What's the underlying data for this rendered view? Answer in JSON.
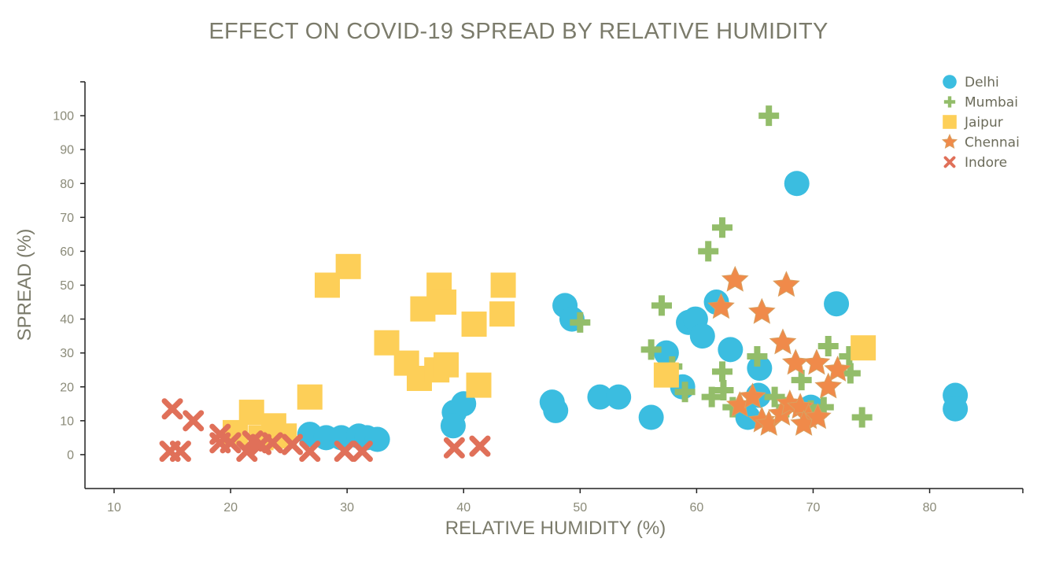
{
  "chart_data": {
    "type": "scatter",
    "title": "EFFECT ON COVID-19 SPREAD BY RELATIVE HUMIDITY",
    "xlabel": "RELATIVE HUMIDITY (%)",
    "ylabel": "SPREAD (%)",
    "xlim": [
      7.5,
      88
    ],
    "ylim": [
      -10,
      110
    ],
    "xticks": [
      10,
      20,
      30,
      40,
      50,
      60,
      70,
      80
    ],
    "yticks": [
      0,
      10,
      20,
      30,
      40,
      50,
      60,
      70,
      80,
      90,
      100
    ],
    "grid": false,
    "legend_position": "top-right",
    "series": [
      {
        "name": "Delhi",
        "marker": "circle",
        "color": "#3bbde0",
        "points": [
          [
            26.8,
            6
          ],
          [
            28.2,
            5
          ],
          [
            29.5,
            5
          ],
          [
            31,
            5.5
          ],
          [
            31.7,
            5
          ],
          [
            32.6,
            4.5
          ],
          [
            39.2,
            12.5
          ],
          [
            39.1,
            8.5
          ],
          [
            40,
            15
          ],
          [
            47.6,
            15.5
          ],
          [
            47.9,
            13
          ],
          [
            48.7,
            44
          ],
          [
            49.3,
            40
          ],
          [
            51.7,
            17
          ],
          [
            53.3,
            17
          ],
          [
            56.1,
            11
          ],
          [
            57.4,
            30
          ],
          [
            58.8,
            20
          ],
          [
            59.3,
            39
          ],
          [
            59.9,
            40
          ],
          [
            60.5,
            35
          ],
          [
            61.7,
            45
          ],
          [
            62.9,
            31
          ],
          [
            64.4,
            11
          ],
          [
            65.4,
            25.5
          ],
          [
            65.3,
            17.5
          ],
          [
            68.6,
            80
          ],
          [
            69.8,
            14
          ],
          [
            72,
            44.5
          ],
          [
            82.2,
            17.5
          ],
          [
            82.2,
            13.5
          ]
        ]
      },
      {
        "name": "Mumbai",
        "marker": "plus",
        "color": "#93bd6a",
        "points": [
          [
            66.2,
            100
          ],
          [
            62.2,
            67
          ],
          [
            61,
            60
          ],
          [
            57,
            44
          ],
          [
            50,
            39
          ],
          [
            56.1,
            31
          ],
          [
            57.9,
            26
          ],
          [
            59,
            18.5
          ],
          [
            61.3,
            17
          ],
          [
            62.2,
            24.5
          ],
          [
            62.3,
            19
          ],
          [
            63.1,
            14
          ],
          [
            65.2,
            29
          ],
          [
            66.7,
            17
          ],
          [
            67.7,
            14
          ],
          [
            69,
            22
          ],
          [
            69.8,
            13
          ],
          [
            70.9,
            14
          ],
          [
            71.3,
            32
          ],
          [
            73.1,
            29
          ],
          [
            73.2,
            24
          ],
          [
            74.2,
            11
          ]
        ]
      },
      {
        "name": "Jaipur",
        "marker": "square",
        "color": "#fdcf58",
        "points": [
          [
            30.1,
            55.5
          ],
          [
            28.3,
            50
          ],
          [
            33.4,
            33
          ],
          [
            26.8,
            17
          ],
          [
            21.8,
            12.5
          ],
          [
            23.7,
            8.5
          ],
          [
            22.6,
            5
          ],
          [
            20.4,
            6.5
          ],
          [
            24.6,
            5.5
          ],
          [
            35.1,
            27
          ],
          [
            36.2,
            22.5
          ],
          [
            36.5,
            43
          ],
          [
            37.7,
            25
          ],
          [
            37.9,
            50
          ],
          [
            38.3,
            45
          ],
          [
            38.5,
            26.5
          ],
          [
            40.9,
            38.5
          ],
          [
            41.3,
            20.5
          ],
          [
            43.3,
            41.5
          ],
          [
            43.4,
            50
          ],
          [
            57.4,
            23.5
          ],
          [
            74.3,
            31.5
          ]
        ]
      },
      {
        "name": "Chennai",
        "marker": "star",
        "color": "#f08a4a",
        "points": [
          [
            62.1,
            43.5
          ],
          [
            63.3,
            51.5
          ],
          [
            65.6,
            42
          ],
          [
            67.7,
            50
          ],
          [
            67.4,
            33
          ],
          [
            68.5,
            27
          ],
          [
            70.3,
            27
          ],
          [
            72.1,
            25
          ],
          [
            71.3,
            20
          ],
          [
            63.7,
            14.5
          ],
          [
            64.8,
            17
          ],
          [
            65.6,
            10
          ],
          [
            66.2,
            9
          ],
          [
            67.3,
            12
          ],
          [
            68,
            15
          ],
          [
            68.9,
            14
          ],
          [
            69.6,
            11
          ],
          [
            69.2,
            9
          ],
          [
            70.4,
            11
          ]
        ]
      },
      {
        "name": "Indore",
        "marker": "x",
        "color": "#e07059",
        "points": [
          [
            15,
            13.5
          ],
          [
            16.8,
            10
          ],
          [
            14.8,
            1
          ],
          [
            15.7,
            1
          ],
          [
            19.1,
            6
          ],
          [
            19.1,
            3.5
          ],
          [
            20,
            3.5
          ],
          [
            21.4,
            1
          ],
          [
            21.9,
            4
          ],
          [
            22.6,
            3
          ],
          [
            23.6,
            3.5
          ],
          [
            25.3,
            3
          ],
          [
            26.8,
            1
          ],
          [
            29.8,
            1
          ],
          [
            31.3,
            1
          ],
          [
            39.2,
            2
          ],
          [
            41.4,
            2.5
          ]
        ]
      }
    ]
  }
}
